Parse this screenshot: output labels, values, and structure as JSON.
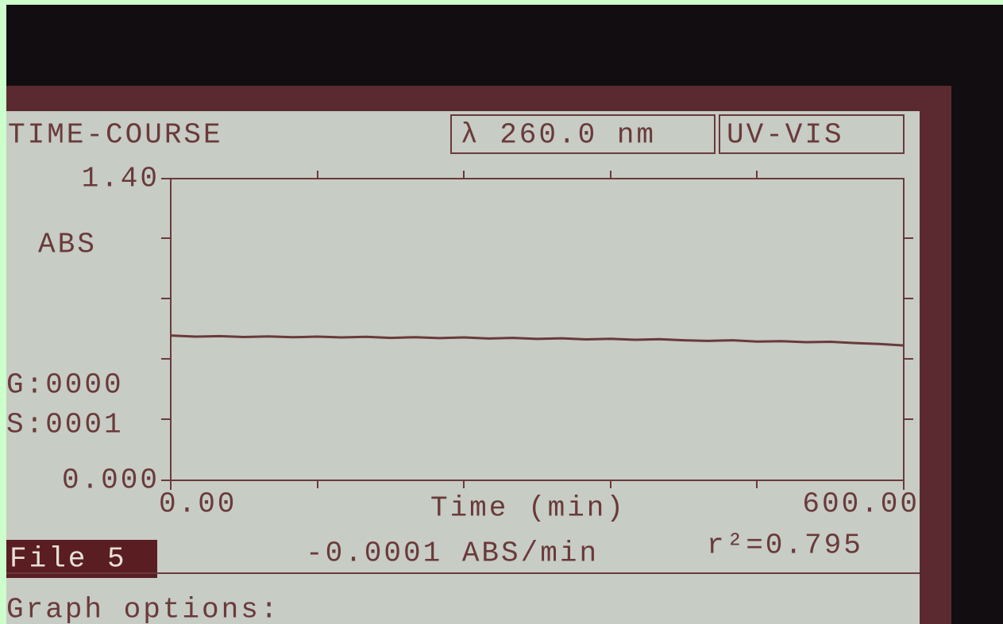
{
  "screen": {
    "mode": "TIME-COURSE",
    "wavelength": "λ 260.0 nm",
    "lamp": "UV-VIS",
    "y_unit": "ABS",
    "g_counter": "G:0000",
    "s_counter": "S:0001",
    "file": "File 5",
    "slope": "-0.0001 ABS/min",
    "r2": "r²=0.795",
    "prompt": "Graph options:"
  },
  "chart_data": {
    "type": "line",
    "x_label": "Time (min)",
    "x": [
      0,
      20,
      40,
      60,
      80,
      100,
      120,
      140,
      160,
      180,
      200,
      220,
      240,
      260,
      280,
      300,
      320,
      340,
      360,
      380,
      400,
      420,
      440,
      460,
      480,
      500,
      520,
      540,
      560,
      580,
      600
    ],
    "series": [
      {
        "color": "#6a3a3a",
        "values": [
          0.672,
          0.667,
          0.669,
          0.665,
          0.668,
          0.664,
          0.667,
          0.663,
          0.666,
          0.661,
          0.664,
          0.66,
          0.663,
          0.658,
          0.661,
          0.656,
          0.659,
          0.654,
          0.657,
          0.652,
          0.655,
          0.65,
          0.647,
          0.65,
          0.644,
          0.646,
          0.641,
          0.643,
          0.637,
          0.633,
          0.626
        ]
      }
    ],
    "xlim": [
      0,
      600
    ],
    "ylim": [
      0,
      1.4
    ],
    "xticks": [
      {
        "value": 0,
        "label": "0.00"
      },
      {
        "value": 600,
        "label": "600.00"
      }
    ],
    "yticks": [
      {
        "value": 0,
        "label": "0.000"
      },
      {
        "value": 1.4,
        "label": "1.40"
      }
    ]
  }
}
